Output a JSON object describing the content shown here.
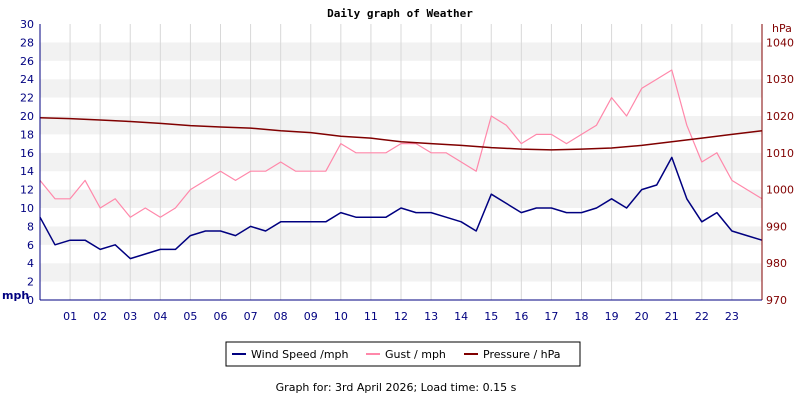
{
  "chart_data": {
    "type": "line",
    "title": "Daily graph of Weather",
    "left_unit": "mph",
    "right_unit": "hPa",
    "left_axis": {
      "min": 0,
      "max": 30,
      "step": 2
    },
    "right_axis": {
      "min": 970,
      "max": 1045,
      "ticks": [
        970,
        980,
        990,
        1000,
        1010,
        1020,
        1030,
        1040
      ]
    },
    "x_axis": {
      "min": 0,
      "max": 24,
      "ticks": [
        "01",
        "02",
        "03",
        "04",
        "05",
        "06",
        "07",
        "08",
        "09",
        "10",
        "11",
        "12",
        "13",
        "14",
        "15",
        "16",
        "17",
        "18",
        "19",
        "20",
        "21",
        "22",
        "23"
      ]
    },
    "grid": "horizontal bands",
    "legend_position": "bottom",
    "series": [
      {
        "name": "Wind Speed /mph",
        "color": "#000080",
        "axis": "left",
        "x": [
          0,
          0.5,
          1,
          1.5,
          2,
          2.5,
          3,
          3.5,
          4,
          4.5,
          5,
          5.5,
          6,
          6.5,
          7,
          7.5,
          8,
          8.5,
          9,
          9.5,
          10,
          10.5,
          11,
          11.5,
          12,
          12.5,
          13,
          13.5,
          14,
          14.5,
          15,
          15.5,
          16,
          16.5,
          17,
          17.5,
          18,
          18.5,
          19,
          19.5,
          20,
          20.5,
          21,
          21.5,
          22,
          22.5,
          23,
          23.5,
          24
        ],
        "values": [
          9,
          6,
          6.5,
          6.5,
          5.5,
          6,
          4.5,
          5,
          5.5,
          5.5,
          7,
          7.5,
          7.5,
          7,
          8,
          7.5,
          8.5,
          8.5,
          8.5,
          8.5,
          9.5,
          9,
          9,
          9,
          10,
          9.5,
          9.5,
          9,
          8.5,
          7.5,
          11.5,
          10.5,
          9.5,
          10,
          10,
          9.5,
          9.5,
          10,
          11,
          10,
          12,
          12.5,
          15.5,
          11,
          8.5,
          9.5,
          7.5,
          7,
          6.5
        ]
      },
      {
        "name": "Gust / mph",
        "color": "#ff88aa",
        "axis": "left",
        "x": [
          0,
          0.5,
          1,
          1.5,
          2,
          2.5,
          3,
          3.5,
          4,
          4.5,
          5,
          5.5,
          6,
          6.5,
          7,
          7.5,
          8,
          8.5,
          9,
          9.5,
          10,
          10.5,
          11,
          11.5,
          12,
          12.5,
          13,
          13.5,
          14,
          14.5,
          15,
          15.5,
          16,
          16.5,
          17,
          17.5,
          18,
          18.5,
          19,
          19.5,
          20,
          20.5,
          21,
          21.5,
          22,
          22.5,
          23,
          23.5,
          24
        ],
        "values": [
          13,
          11,
          11,
          13,
          10,
          11,
          9,
          10,
          9,
          10,
          12,
          13,
          14,
          13,
          14,
          14,
          15,
          14,
          14,
          14,
          17,
          16,
          16,
          16,
          17,
          17,
          16,
          16,
          15,
          14,
          20,
          19,
          17,
          18,
          18,
          17,
          18,
          19,
          22,
          20,
          23,
          24,
          25,
          19,
          15,
          16,
          13,
          12,
          11
        ]
      },
      {
        "name": "Pressure / hPa",
        "color": "#800000",
        "axis": "right",
        "x": [
          0,
          1,
          2,
          3,
          4,
          5,
          6,
          7,
          8,
          9,
          10,
          11,
          12,
          13,
          14,
          15,
          16,
          17,
          18,
          19,
          20,
          21,
          22,
          23,
          24
        ],
        "values": [
          1019.5,
          1019.3,
          1018.9,
          1018.5,
          1018,
          1017.4,
          1017,
          1016.7,
          1016,
          1015.5,
          1014.5,
          1014,
          1013,
          1012.5,
          1012,
          1011.4,
          1011,
          1010.8,
          1011,
          1011.3,
          1012,
          1013,
          1014,
          1015,
          1016
        ]
      }
    ],
    "footer": "Graph for: 3rd April 2026; Load time: 0.15 s"
  }
}
